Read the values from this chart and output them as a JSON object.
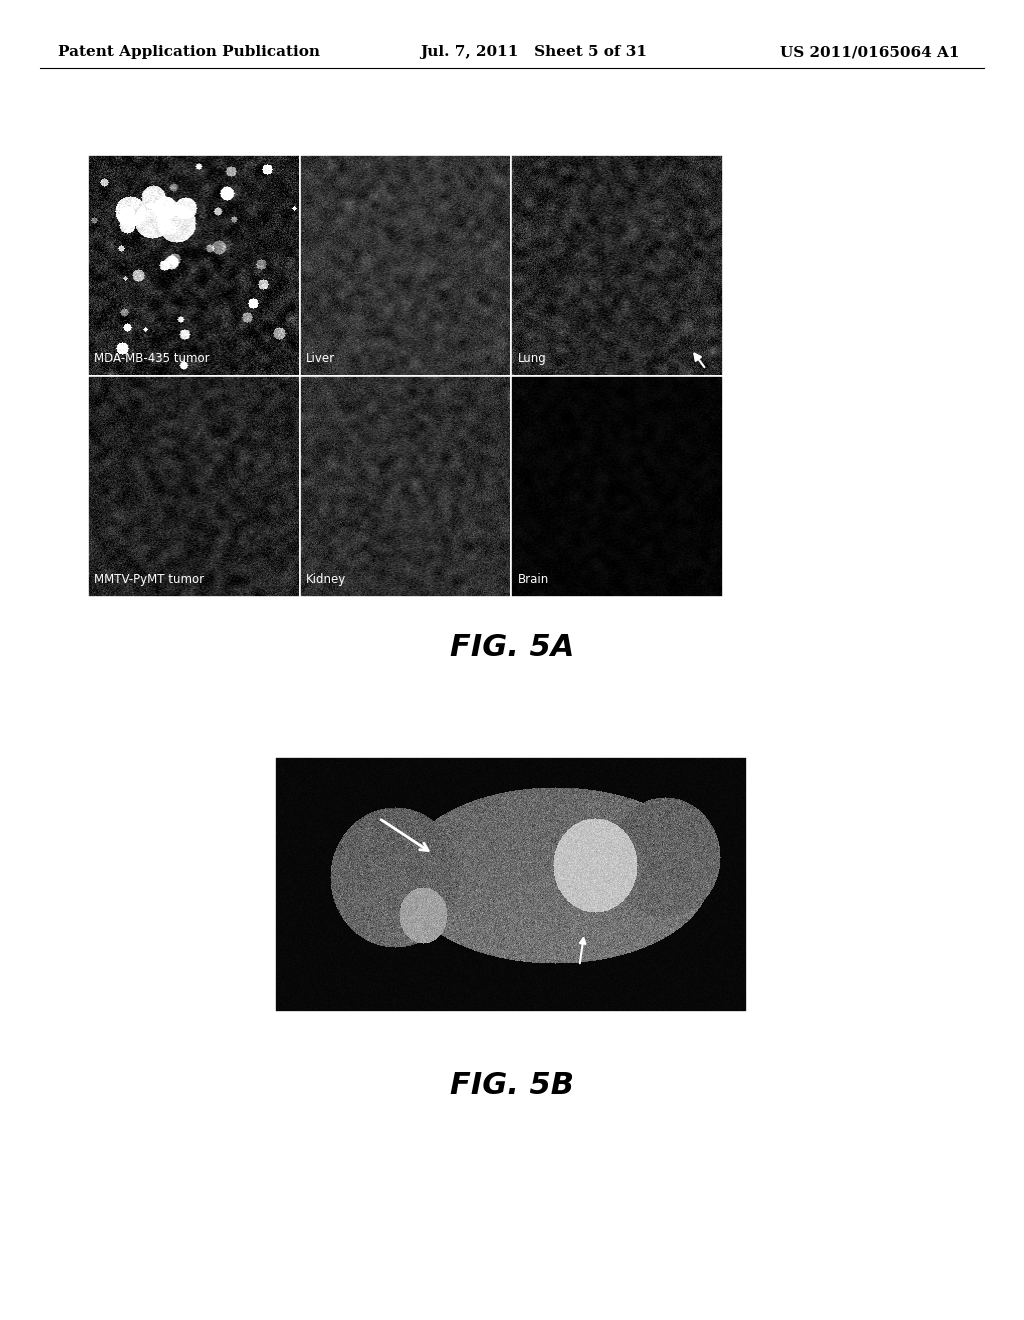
{
  "background_color": "#ffffff",
  "header_text_left": "Patent Application Publication",
  "header_text_mid": "Jul. 7, 2011   Sheet 5 of 31",
  "header_text_right": "US 2011/0165064 A1",
  "header_fontsize": 11,
  "fig5a_label": "FIG. 5A",
  "fig5a_fontsize": 22,
  "fig5b_label": "FIG. 5B",
  "fig5b_fontsize": 22,
  "grid_labels": [
    [
      "MDA-MB-435 tumor",
      "Liver",
      "Lung"
    ],
    [
      "MMTV-PyMT tumor",
      "Kidney",
      "Brain"
    ]
  ],
  "cell_configs": [
    {
      "mean": 28,
      "std": 28,
      "bright": true,
      "label": "MDA-MB-435 tumor",
      "seed": 1
    },
    {
      "mean": 52,
      "std": 18,
      "bright": false,
      "label": "Liver",
      "seed": 2
    },
    {
      "mean": 38,
      "std": 22,
      "bright": false,
      "label": "Lung",
      "seed": 3,
      "arrow_top_right": true
    },
    {
      "mean": 32,
      "std": 20,
      "bright": false,
      "label": "MMTV-PyMT tumor",
      "seed": 4
    },
    {
      "mean": 45,
      "std": 18,
      "bright": false,
      "label": "Kidney",
      "seed": 5
    },
    {
      "mean": 5,
      "std": 5,
      "bright": false,
      "label": "Brain",
      "seed": 6
    }
  ]
}
